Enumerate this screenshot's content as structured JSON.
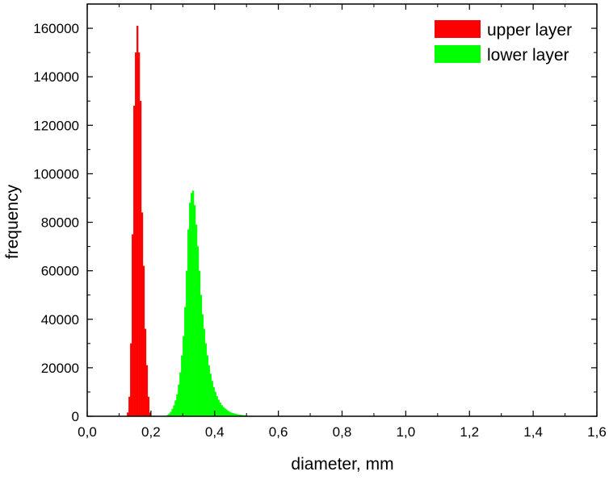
{
  "chart_data": {
    "type": "bar",
    "xlabel": "diameter, mm",
    "ylabel": "frequency",
    "xlim": [
      0.0,
      1.6
    ],
    "ylim": [
      0,
      170000
    ],
    "x_ticks": [
      {
        "value": 0.0,
        "label": "0,0"
      },
      {
        "value": 0.2,
        "label": "0,2"
      },
      {
        "value": 0.4,
        "label": "0,4"
      },
      {
        "value": 0.6,
        "label": "0,6"
      },
      {
        "value": 0.8,
        "label": "0,8"
      },
      {
        "value": 1.0,
        "label": "1,0"
      },
      {
        "value": 1.2,
        "label": "1,2"
      },
      {
        "value": 1.4,
        "label": "1,4"
      },
      {
        "value": 1.6,
        "label": "1,6"
      }
    ],
    "y_ticks": [
      {
        "value": 0,
        "label": "0"
      },
      {
        "value": 20000,
        "label": "20000"
      },
      {
        "value": 40000,
        "label": "40000"
      },
      {
        "value": 60000,
        "label": "60000"
      },
      {
        "value": 80000,
        "label": "80000"
      },
      {
        "value": 100000,
        "label": "100000"
      },
      {
        "value": 120000,
        "label": "120000"
      },
      {
        "value": 140000,
        "label": "140000"
      },
      {
        "value": 160000,
        "label": "160000"
      }
    ],
    "bin_width": 0.005,
    "grid": false,
    "legend_position": "top-right",
    "series": [
      {
        "name": "upper layer",
        "color": "#ff0000",
        "x": [
          0.125,
          0.13,
          0.135,
          0.14,
          0.145,
          0.15,
          0.155,
          0.16,
          0.165,
          0.17,
          0.175,
          0.18,
          0.185,
          0.19,
          0.195
        ],
        "values": [
          1500,
          8000,
          30000,
          75000,
          128000,
          150000,
          161000,
          150000,
          130000,
          84000,
          62000,
          36000,
          21000,
          8000,
          1500
        ]
      },
      {
        "name": "lower layer",
        "color": "#00ff00",
        "x": [
          0.25,
          0.255,
          0.26,
          0.265,
          0.27,
          0.275,
          0.28,
          0.285,
          0.29,
          0.295,
          0.3,
          0.305,
          0.31,
          0.315,
          0.32,
          0.325,
          0.33,
          0.335,
          0.34,
          0.345,
          0.35,
          0.355,
          0.36,
          0.365,
          0.37,
          0.375,
          0.38,
          0.385,
          0.39,
          0.395,
          0.4,
          0.405,
          0.41,
          0.415,
          0.42,
          0.425,
          0.43,
          0.435,
          0.44,
          0.445,
          0.45,
          0.455,
          0.46,
          0.465,
          0.47,
          0.475,
          0.48,
          0.485,
          0.49,
          0.495,
          0.5,
          0.51,
          0.52,
          0.53,
          0.54,
          0.55,
          0.56,
          0.57,
          0.58,
          0.59
        ],
        "values": [
          500,
          1000,
          1800,
          3000,
          4500,
          6500,
          9000,
          13000,
          18000,
          25000,
          33000,
          45000,
          60000,
          77000,
          88000,
          92000,
          93000,
          87000,
          79000,
          70000,
          60000,
          50000,
          42000,
          36000,
          30000,
          25000,
          21000,
          17500,
          14500,
          12000,
          10000,
          8200,
          6800,
          5600,
          4600,
          3800,
          3200,
          2700,
          2200,
          1800,
          1500,
          1300,
          1100,
          900,
          750,
          650,
          550,
          450,
          380,
          320,
          260,
          200,
          160,
          120,
          90,
          70,
          50,
          40,
          30,
          20
        ]
      }
    ]
  }
}
